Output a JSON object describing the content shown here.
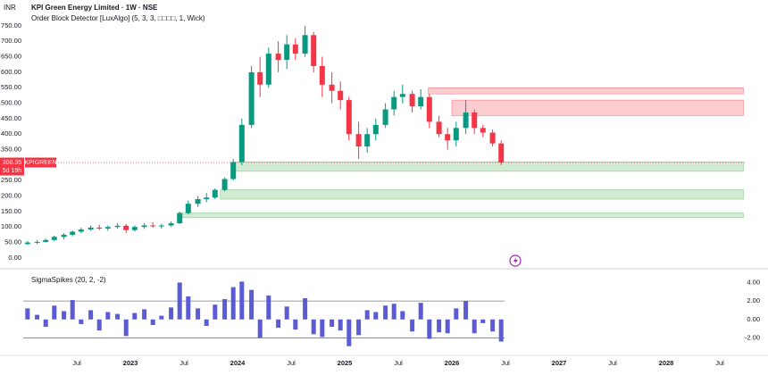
{
  "chart_data": [
    {
      "type": "candlestick",
      "currency": "INR",
      "title": "KPI Green Energy Limited · 1W · NSE",
      "indicator": "Order Block Detector [LuxAlgo] (5, 3, 3, □□□□, 1, Wick)",
      "symbol": "KPIGREEN",
      "countdown": "5d 19h",
      "up_color": "#089981",
      "down_color": "#f23645",
      "x": [
        2022.04,
        2022.13,
        2022.21,
        2022.29,
        2022.38,
        2022.46,
        2022.54,
        2022.63,
        2022.71,
        2022.79,
        2022.88,
        2022.96,
        2023.04,
        2023.13,
        2023.21,
        2023.29,
        2023.38,
        2023.46,
        2023.54,
        2023.63,
        2023.71,
        2023.79,
        2023.88,
        2023.96,
        2024.04,
        2024.13,
        2024.21,
        2024.29,
        2024.38,
        2024.46,
        2024.54,
        2024.63,
        2024.71,
        2024.79,
        2024.88,
        2024.96,
        2025.04,
        2025.13,
        2025.21,
        2025.29,
        2025.38,
        2025.46,
        2025.54,
        2025.63,
        2025.71,
        2025.79,
        2025.88,
        2025.96,
        2026.04,
        2026.13,
        2026.21,
        2026.29,
        2026.38,
        2026.46
      ],
      "open": [
        45,
        50,
        52,
        58,
        68,
        75,
        85,
        92,
        98,
        95,
        100,
        104,
        90,
        100,
        105,
        102,
        105,
        112,
        145,
        175,
        190,
        195,
        220,
        255,
        310,
        430,
        600,
        560,
        660,
        640,
        690,
        660,
        720,
        620,
        560,
        540,
        510,
        400,
        360,
        400,
        430,
        480,
        520,
        530,
        490,
        520,
        440,
        400,
        380,
        420,
        470,
        420,
        405,
        370
      ],
      "high": [
        55,
        58,
        62,
        72,
        80,
        88,
        98,
        105,
        108,
        105,
        112,
        110,
        105,
        112,
        115,
        110,
        118,
        150,
        185,
        200,
        210,
        225,
        260,
        320,
        450,
        620,
        650,
        680,
        700,
        720,
        710,
        750,
        730,
        650,
        600,
        570,
        520,
        440,
        420,
        450,
        500,
        540,
        560,
        540,
        545,
        530,
        460,
        420,
        440,
        510,
        480,
        430,
        415,
        380
      ],
      "low": [
        42,
        45,
        50,
        55,
        60,
        70,
        80,
        88,
        90,
        88,
        95,
        80,
        85,
        94,
        98,
        95,
        100,
        110,
        140,
        165,
        180,
        190,
        215,
        250,
        300,
        420,
        520,
        550,
        600,
        610,
        640,
        650,
        600,
        520,
        500,
        480,
        380,
        320,
        340,
        380,
        420,
        460,
        500,
        470,
        480,
        420,
        390,
        350,
        360,
        400,
        400,
        390,
        360,
        300
      ],
      "close": [
        50,
        52,
        58,
        68,
        75,
        85,
        92,
        98,
        95,
        100,
        104,
        90,
        100,
        105,
        102,
        105,
        112,
        145,
        175,
        190,
        195,
        220,
        255,
        310,
        430,
        600,
        560,
        660,
        640,
        690,
        660,
        720,
        620,
        560,
        540,
        510,
        400,
        360,
        400,
        430,
        480,
        520,
        530,
        490,
        520,
        440,
        400,
        380,
        420,
        470,
        420,
        405,
        370,
        308.35
      ],
      "xlim": [
        2022,
        2028.75
      ],
      "ylim": [
        -32,
        819
      ],
      "yticks": [
        {
          "value": 0,
          "label": "0.00"
        },
        {
          "value": 50,
          "label": "50.00"
        },
        {
          "value": 100,
          "label": "100.00"
        },
        {
          "value": 150,
          "label": "150.00"
        },
        {
          "value": 200,
          "label": "200.00"
        },
        {
          "value": 250,
          "label": "250.00"
        },
        {
          "value": 300,
          "label": "300.00"
        },
        {
          "value": 350,
          "label": "350.00"
        },
        {
          "value": 400,
          "label": "400.00"
        },
        {
          "value": 450,
          "label": "450.00"
        },
        {
          "value": 500,
          "label": "500.00"
        },
        {
          "value": 550,
          "label": "550.00"
        },
        {
          "value": 600,
          "label": "600.00"
        },
        {
          "value": 650,
          "label": "650.00"
        },
        {
          "value": 700,
          "label": "700.00"
        },
        {
          "value": 750,
          "label": "750.00"
        }
      ],
      "zones": [
        {
          "color": "#f23645",
          "from": 2025.78,
          "to": 2028.72,
          "low": 530,
          "high": 550
        },
        {
          "color": "#f23645",
          "from": 2026.0,
          "to": 2028.72,
          "low": 460,
          "high": 510
        },
        {
          "color": "#4caf50",
          "from": 2023.97,
          "to": 2028.72,
          "low": 280,
          "high": 310
        },
        {
          "color": "#4caf50",
          "from": 2023.84,
          "to": 2028.72,
          "low": 190,
          "high": 220
        },
        {
          "color": "#4caf50",
          "from": 2023.45,
          "to": 2028.72,
          "low": 130,
          "high": 145
        }
      ]
    },
    {
      "type": "bar",
      "title": "SigmaSpikes (20, 2, -2)",
      "color": "#5b5bd6",
      "thresholds": [
        2,
        -2
      ],
      "values": [
        1.2,
        0.5,
        -0.8,
        1.5,
        0.9,
        2.1,
        -0.5,
        1.0,
        -1.2,
        0.8,
        0.6,
        -1.8,
        0.7,
        1.1,
        -0.6,
        0.4,
        1.3,
        4.0,
        2.5,
        1.2,
        -0.7,
        1.6,
        2.2,
        3.5,
        4.1,
        3.2,
        -2.0,
        2.6,
        -0.9,
        1.4,
        -1.1,
        2.3,
        -1.6,
        -1.9,
        -0.8,
        -1.2,
        -2.9,
        -1.7,
        1.0,
        0.8,
        1.5,
        1.7,
        0.9,
        -1.3,
        1.8,
        -2.1,
        -1.4,
        -1.5,
        1.2,
        2.0,
        -1.5,
        -0.4,
        -1.3,
        -2.4
      ],
      "xlim": [
        2022,
        2028.75
      ],
      "ylim": [
        -3.7,
        5.3
      ],
      "yticks": [
        {
          "value": 4,
          "label": "4.00"
        },
        {
          "value": 2,
          "label": "2.00"
        },
        {
          "value": 0,
          "label": "0.00"
        },
        {
          "value": -2,
          "label": "-2.00"
        }
      ],
      "xticks": [
        {
          "value": 2022.5,
          "label": "Jul"
        },
        2023,
        {
          "value": 2023.5,
          "label": "Jul"
        },
        2024,
        {
          "value": 2024.5,
          "label": "Jul"
        },
        2025,
        {
          "value": 2025.5,
          "label": "Jul"
        },
        2026,
        {
          "value": 2026.5,
          "label": "Jul"
        },
        2027,
        {
          "value": 2027.5,
          "label": "Jul"
        },
        2028,
        {
          "value": 2028.5,
          "label": "Jul"
        }
      ]
    }
  ]
}
